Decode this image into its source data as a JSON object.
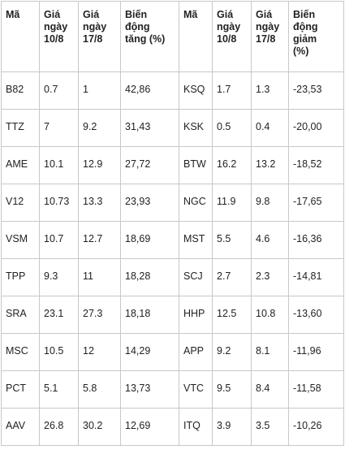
{
  "headers": {
    "ma_left": "Mã",
    "gia_108_left": [
      "Giá",
      "ngày",
      "10/8"
    ],
    "gia_178_left": [
      "Giá",
      "ngày",
      "17/8"
    ],
    "bien_dong_tang": [
      "Biến",
      "động",
      "tăng (%)"
    ],
    "ma_right": "Mã",
    "gia_108_right": [
      "Giá",
      "ngày",
      "10/8"
    ],
    "gia_178_right": [
      "Giá",
      "ngày",
      "17/8"
    ],
    "bien_dong_giam": [
      "Biến",
      "động",
      "giảm",
      "(%)"
    ]
  },
  "rows": [
    {
      "up_code": "B82",
      "up_p1": "0.7",
      "up_p2": "1",
      "up_chg": "42,86",
      "down_code": "KSQ",
      "down_p1": "1.7",
      "down_p2": "1.3",
      "down_chg": "-23,53"
    },
    {
      "up_code": "TTZ",
      "up_p1": "7",
      "up_p2": "9.2",
      "up_chg": "31,43",
      "down_code": "KSK",
      "down_p1": "0.5",
      "down_p2": "0.4",
      "down_chg": "-20,00"
    },
    {
      "up_code": "AME",
      "up_p1": "10.1",
      "up_p2": "12.9",
      "up_chg": "27,72",
      "down_code": "BTW",
      "down_p1": "16.2",
      "down_p2": "13.2",
      "down_chg": "-18,52"
    },
    {
      "up_code": "V12",
      "up_p1": "10.73",
      "up_p2": "13.3",
      "up_chg": "23,93",
      "down_code": "NGC",
      "down_p1": "11.9",
      "down_p2": "9.8",
      "down_chg": "-17,65"
    },
    {
      "up_code": "VSM",
      "up_p1": "10.7",
      "up_p2": "12.7",
      "up_chg": "18,69",
      "down_code": "MST",
      "down_p1": "5.5",
      "down_p2": "4.6",
      "down_chg": "-16,36"
    },
    {
      "up_code": "TPP",
      "up_p1": "9.3",
      "up_p2": "11",
      "up_chg": "18,28",
      "down_code": "SCJ",
      "down_p1": "2.7",
      "down_p2": "2.3",
      "down_chg": "-14,81"
    },
    {
      "up_code": "SRA",
      "up_p1": "23.1",
      "up_p2": "27.3",
      "up_chg": "18,18",
      "down_code": "HHP",
      "down_p1": "12.5",
      "down_p2": "10.8",
      "down_chg": "-13,60"
    },
    {
      "up_code": "MSC",
      "up_p1": "10.5",
      "up_p2": "12",
      "up_chg": "14,29",
      "down_code": "APP",
      "down_p1": "9.2",
      "down_p2": "8.1",
      "down_chg": "-11,96"
    },
    {
      "up_code": "PCT",
      "up_p1": "5.1",
      "up_p2": "5.8",
      "up_chg": "13,73",
      "down_code": "VTC",
      "down_p1": "9.5",
      "down_p2": "8.4",
      "down_chg": "-11,58"
    },
    {
      "up_code": "AAV",
      "up_p1": "26.8",
      "up_p2": "30.2",
      "up_chg": "12,69",
      "down_code": "ITQ",
      "down_p1": "3.9",
      "down_p2": "3.5",
      "down_chg": "-10,26"
    }
  ]
}
